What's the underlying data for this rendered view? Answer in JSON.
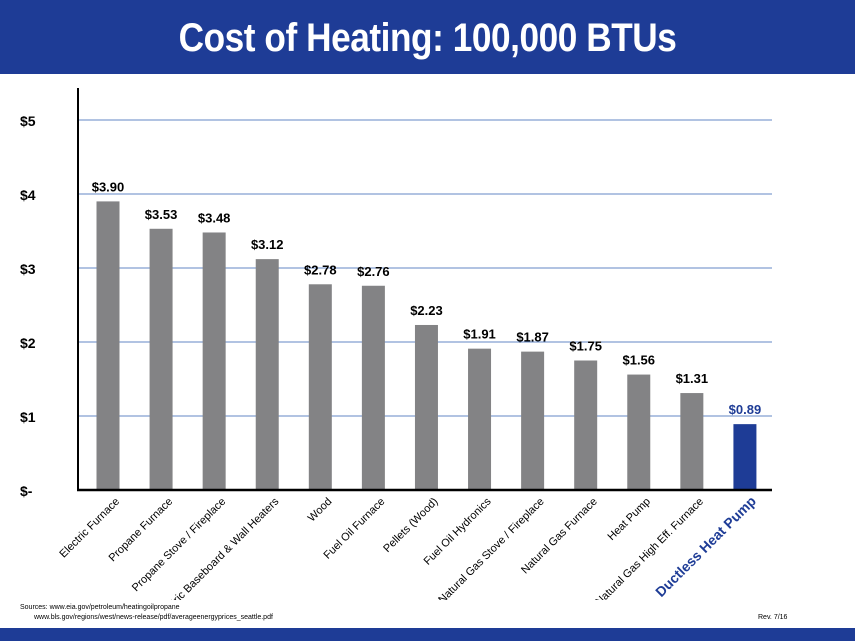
{
  "title": "Cost of Heating: 100,000 BTUs",
  "sources": [
    "Sources: www.eia.gov/petroleum/heatingoilpropane",
    "www.bls.gov/regions/west/news-release/pdf/averageenergyprices_seattle.pdf"
  ],
  "revision": "Rev. 7/16",
  "colors": {
    "header": "#1e3c96",
    "bar": "#838385",
    "highlight": "#1e3c96",
    "grid": "#2f5fb3"
  },
  "chart_data": {
    "type": "bar",
    "title": "Cost of Heating: 100,000 BTUs",
    "xlabel": "",
    "ylabel": "",
    "ylim": [
      0,
      5
    ],
    "yticks": [
      0,
      1,
      2,
      3,
      4,
      5
    ],
    "ytick_labels": [
      "$-",
      "$1",
      "$2",
      "$3",
      "$4",
      "$5"
    ],
    "grid": true,
    "categories": [
      "Electric Furnace",
      "Propane Furnace",
      "Propane Stove / Fireplace",
      "Electric Baseboard & Wall Heaters",
      "Wood",
      "Fuel Oil Furnace",
      "Pellets (Wood)",
      "Fuel Oil Hydronics",
      "Natural Gas Stove / Fireplace",
      "Natural Gas Furnace",
      "Heat Pump",
      "Natural Gas High Eff. Furnace",
      "Ductless Heat Pump"
    ],
    "values": [
      3.9,
      3.53,
      3.48,
      3.12,
      2.78,
      2.76,
      2.23,
      1.91,
      1.87,
      1.75,
      1.56,
      1.31,
      0.89
    ],
    "data_labels": [
      "$3.90",
      "$3.53",
      "$3.48",
      "$3.12",
      "$2.78",
      "$2.76",
      "$2.23",
      "$1.91",
      "$1.87",
      "$1.75",
      "$1.56",
      "$1.31",
      "$0.89"
    ],
    "highlight": "Ductless Heat Pump"
  }
}
